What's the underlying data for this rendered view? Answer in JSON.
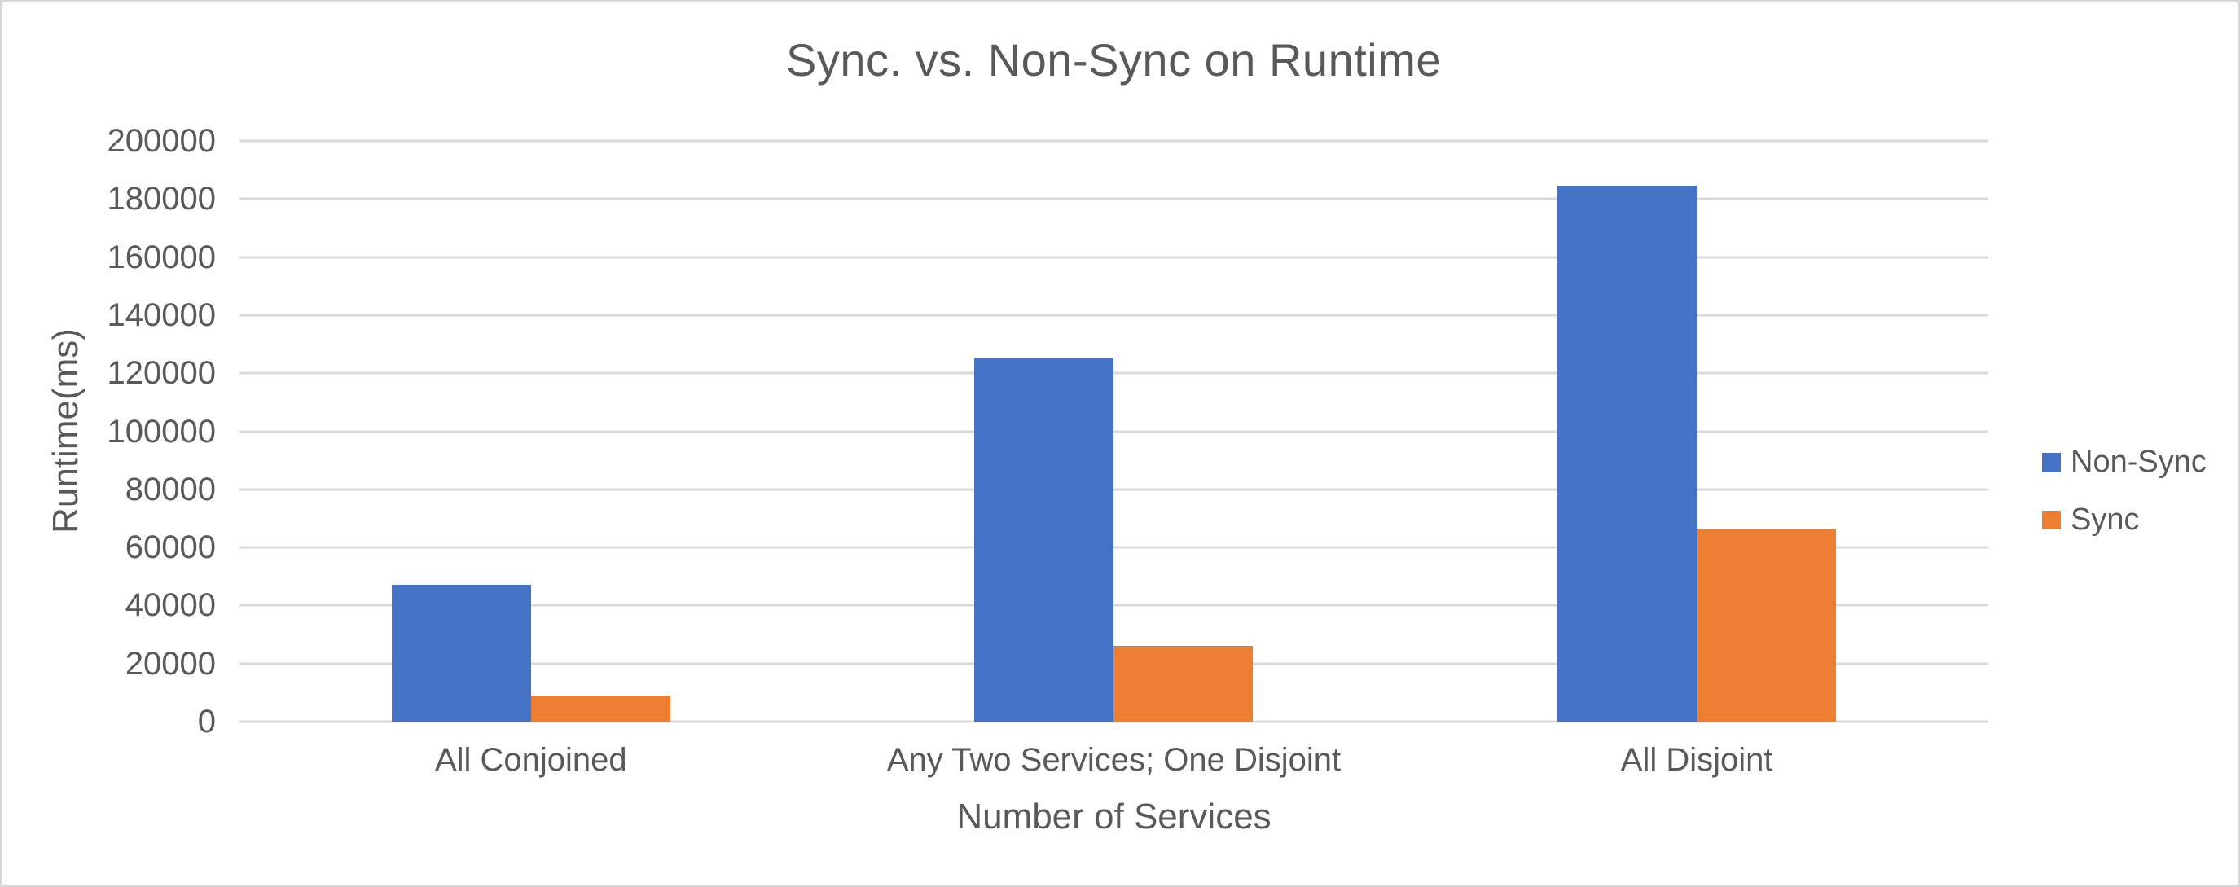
{
  "chart_data": {
    "type": "bar",
    "title": "Sync. vs. Non-Sync on Runtime",
    "xlabel": "Number of Services",
    "ylabel": "Runtime(ms)",
    "categories": [
      "All Conjoined",
      "Any Two Services; One Disjoint",
      "All Disjoint"
    ],
    "series": [
      {
        "name": "Non-Sync",
        "color": "#4472C4",
        "values": [
          47000,
          125000,
          184500
        ]
      },
      {
        "name": "Sync",
        "color": "#ED7D31",
        "values": [
          9000,
          26000,
          66500
        ]
      }
    ],
    "ylim": [
      0,
      200000
    ],
    "ytick_step": 20000,
    "yticks": [
      0,
      20000,
      40000,
      60000,
      80000,
      100000,
      120000,
      140000,
      160000,
      180000,
      200000
    ],
    "grid": true,
    "legend_position": "right",
    "gridline_color": "#D9D9D9",
    "text_color": "#595959"
  }
}
